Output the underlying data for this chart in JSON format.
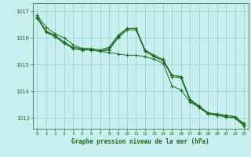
{
  "title": "Graphe pression niveau de la mer (hPa)",
  "bg_color": "#c8eef0",
  "grid_color": "#a0d8d8",
  "line_color": "#1a6b1a",
  "marker_color": "#1a6b1a",
  "xlim": [
    -0.5,
    23.5
  ],
  "ylim": [
    1012.6,
    1017.3
  ],
  "yticks": [
    1013,
    1014,
    1015,
    1016,
    1017
  ],
  "xticks": [
    0,
    1,
    2,
    3,
    4,
    5,
    6,
    7,
    8,
    9,
    10,
    11,
    12,
    13,
    14,
    15,
    16,
    17,
    18,
    19,
    20,
    21,
    22,
    23
  ],
  "series": [
    [
      1016.85,
      1016.4,
      1016.15,
      1016.0,
      1015.75,
      1015.6,
      1015.55,
      1015.5,
      1015.45,
      1015.4,
      1015.35,
      1015.35,
      1015.3,
      1015.2,
      1015.05,
      1014.2,
      1014.05,
      1013.6,
      1013.4,
      1013.2,
      1013.1,
      1013.05,
      1013.0,
      1012.7
    ],
    [
      1016.75,
      1016.25,
      1016.05,
      1015.8,
      1015.6,
      1015.55,
      1015.55,
      1015.5,
      1015.55,
      1016.0,
      1016.3,
      1016.3,
      1015.5,
      1015.3,
      1015.15,
      1014.55,
      1014.5,
      1013.65,
      1013.4,
      1013.15,
      1013.1,
      1013.05,
      1013.0,
      1012.75
    ],
    [
      1016.75,
      1016.2,
      1016.05,
      1015.8,
      1015.6,
      1015.55,
      1015.55,
      1015.5,
      1015.6,
      1016.05,
      1016.35,
      1016.35,
      1015.5,
      1015.3,
      1015.15,
      1014.6,
      1014.55,
      1013.7,
      1013.45,
      1013.15,
      1013.15,
      1013.1,
      1013.05,
      1012.75
    ],
    [
      1016.8,
      1016.25,
      1016.1,
      1015.85,
      1015.65,
      1015.6,
      1015.6,
      1015.55,
      1015.65,
      1016.1,
      1016.35,
      1016.35,
      1015.55,
      1015.35,
      1015.2,
      1014.6,
      1014.55,
      1013.7,
      1013.45,
      1013.2,
      1013.15,
      1013.1,
      1013.05,
      1012.8
    ]
  ]
}
